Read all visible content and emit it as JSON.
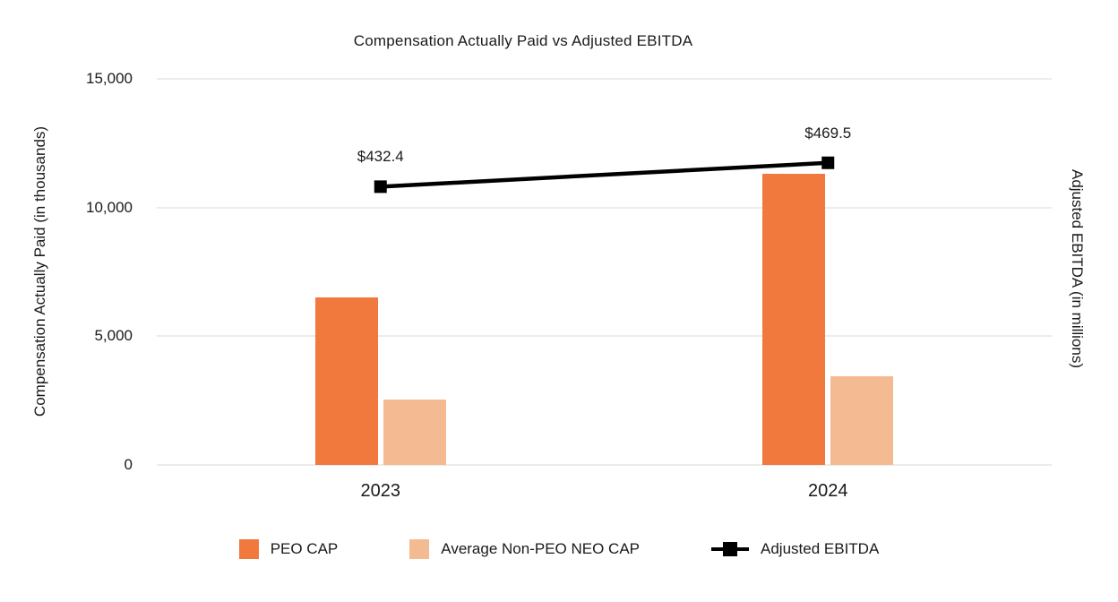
{
  "chart_data": {
    "type": "combo-bar-line",
    "title": "Compensation Actually Paid vs Adjusted EBITDA",
    "categories": [
      "2023",
      "2024"
    ],
    "series": [
      {
        "name": "PEO CAP",
        "type": "bar",
        "axis": "left",
        "color": "#F2793D",
        "values": [
          6500,
          11300
        ]
      },
      {
        "name": "Average Non-PEO NEO CAP",
        "type": "bar",
        "axis": "left",
        "color": "#F4BB92",
        "values": [
          2550,
          3460
        ]
      },
      {
        "name": "Adjusted EBITDA",
        "type": "line",
        "axis": "right",
        "color": "#000000",
        "values": [
          432.4,
          469.5
        ],
        "point_labels": [
          "$432.4",
          "$469.5"
        ]
      }
    ],
    "left_axis": {
      "label": "Compensation Actually Paid (in thousands)",
      "ylim": [
        0,
        15000
      ],
      "ticks": [
        0,
        5000,
        10000,
        15000
      ],
      "tick_labels": [
        "0",
        "5,000",
        "10,000",
        "15,000"
      ]
    },
    "right_axis": {
      "label": "Adjusted EBITDA (in millions)",
      "ylim": [
        0,
        600
      ],
      "tick_labels_visible": false
    },
    "grid": true,
    "legend_position": "bottom"
  },
  "colors": {
    "background": "#FFFFFF",
    "grid": "#ECECEC",
    "text": "#1A1A1A",
    "bar_peo_cap": "#F2793D",
    "bar_avg_non_peo_neo_cap": "#F4BB92",
    "line_adjusted_ebitda": "#000000"
  }
}
